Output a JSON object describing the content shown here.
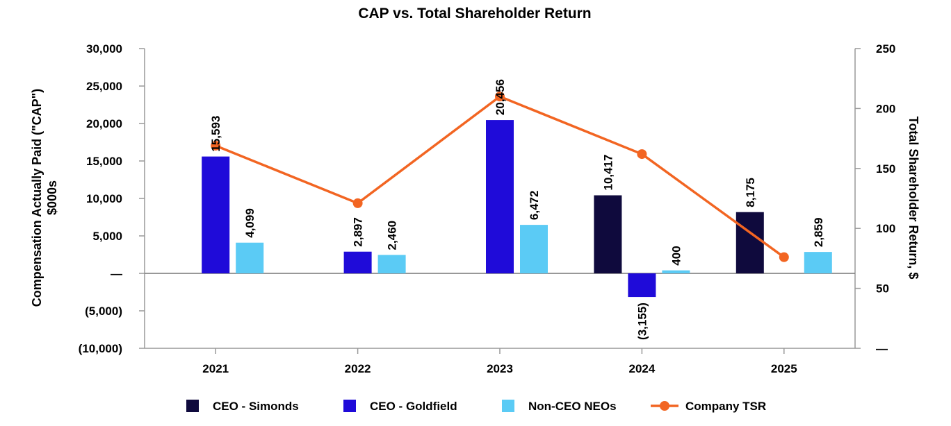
{
  "chart_data": {
    "type": "bar",
    "title": "CAP vs. Total Shareholder Return",
    "categories": [
      "2021",
      "2022",
      "2023",
      "2024",
      "2025"
    ],
    "series": [
      {
        "name": "CEO - Simonds",
        "kind": "bar",
        "axis": "left",
        "color": "#0f0a3d",
        "values": [
          null,
          null,
          null,
          10417,
          8175
        ],
        "labels": [
          null,
          null,
          null,
          "10,417",
          "8,175"
        ]
      },
      {
        "name": "CEO - Goldfield",
        "kind": "bar",
        "axis": "left",
        "color": "#1f0bd9",
        "values": [
          15593,
          2897,
          20456,
          -3155,
          null
        ],
        "labels": [
          "15,593",
          "2,897",
          "20,456",
          "(3,155)",
          null
        ]
      },
      {
        "name": "Non-CEO NEOs",
        "kind": "bar",
        "axis": "left",
        "color": "#5bcbf5",
        "values": [
          4099,
          2460,
          6472,
          400,
          2859
        ],
        "labels": [
          "4,099",
          "2,460",
          "6,472",
          "400",
          "2,859"
        ]
      },
      {
        "name": "Company TSR",
        "kind": "line",
        "axis": "right",
        "color": "#f26522",
        "values": [
          169,
          121,
          210,
          162,
          76
        ]
      }
    ],
    "ylabel": "Compensation Actually Paid (\"CAP\") $000s",
    "y2label": "Total Shareholder Return, $",
    "ylim": [
      -10000,
      30000
    ],
    "y2lim": [
      0,
      250
    ],
    "yticks": [
      -10000,
      -5000,
      0,
      5000,
      10000,
      15000,
      20000,
      25000,
      30000
    ],
    "yticklabels": [
      "(10,000)",
      "(5,000)",
      "—",
      "5,000",
      "10,000",
      "15,000",
      "20,000",
      "25,000",
      "30,000"
    ],
    "y2ticks": [
      0,
      50,
      100,
      150,
      200,
      250
    ],
    "y2ticklabels": [
      "—",
      "50",
      "100",
      "150",
      "200",
      "250"
    ],
    "legend_position": "bottom",
    "grid": false
  }
}
